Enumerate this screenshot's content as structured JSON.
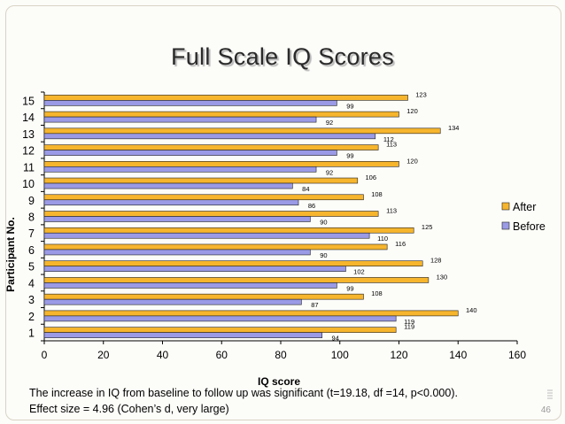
{
  "slide": {
    "title": "Full Scale IQ Scores",
    "caption_line1": "The increase in IQ from baseline to follow up was significant (t=19.18, df =14, p<0.000).",
    "caption_line2": "Effect size = 4.96 (Cohen’s d, very large)",
    "page_number": "46"
  },
  "chart_data": {
    "type": "bar",
    "orientation": "horizontal",
    "title": "Full Scale IQ Scores",
    "xlabel": "IQ score",
    "ylabel": "Participant No.",
    "xlim": [
      0,
      160
    ],
    "xticks": [
      "0",
      "20",
      "40",
      "60",
      "80",
      "100",
      "120",
      "140",
      "160"
    ],
    "categories": [
      "1",
      "2",
      "3",
      "4",
      "5",
      "6",
      "7",
      "8",
      "9",
      "10",
      "11",
      "12",
      "13",
      "14",
      "15"
    ],
    "series": [
      {
        "name": "After",
        "color": "#f6b52d",
        "values": [
          119,
          140,
          108,
          130,
          128,
          116,
          125,
          113,
          108,
          106,
          120,
          113,
          134,
          120,
          123
        ]
      },
      {
        "name": "Before",
        "color": "#9a9ae6",
        "values": [
          94,
          119,
          87,
          99,
          102,
          90,
          110,
          90,
          86,
          84,
          92,
          99,
          112,
          92,
          99
        ]
      }
    ],
    "legend_position": "right"
  }
}
